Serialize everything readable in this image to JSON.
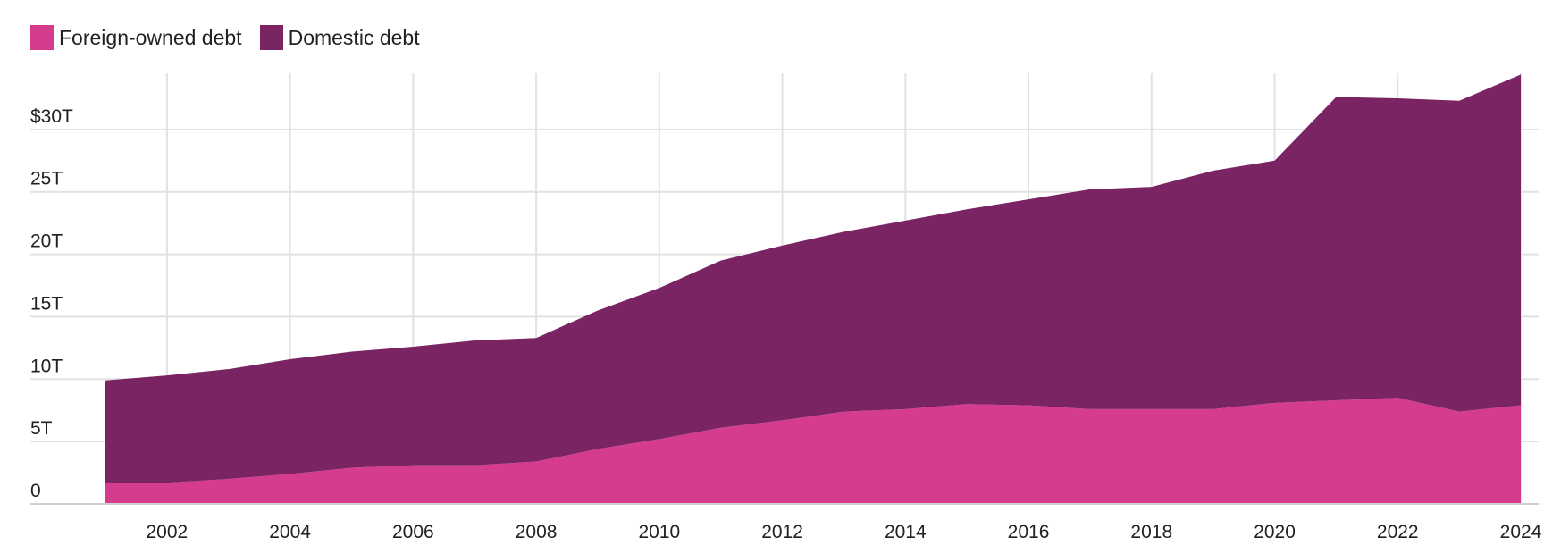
{
  "legend": {
    "foreign_label": "Foreign-owned debt",
    "domestic_label": "Domestic debt"
  },
  "colors": {
    "foreign": "#d53c8d",
    "domestic": "#7b2463",
    "grid": "#e2e2e2",
    "axis": "#cfcfcf"
  },
  "chart_data": {
    "type": "area",
    "stacked": true,
    "title": "",
    "xlabel": "",
    "ylabel": "",
    "x": [
      2001,
      2002,
      2003,
      2004,
      2005,
      2006,
      2007,
      2008,
      2009,
      2010,
      2011,
      2012,
      2013,
      2014,
      2015,
      2016,
      2017,
      2018,
      2019,
      2020,
      2021,
      2022,
      2023,
      2024
    ],
    "series": [
      {
        "name": "Foreign-owned debt",
        "values": [
          1.7,
          1.7,
          2.0,
          2.4,
          2.9,
          3.1,
          3.1,
          3.4,
          4.4,
          5.2,
          6.1,
          6.7,
          7.4,
          7.6,
          8.0,
          7.9,
          7.6,
          7.6,
          7.6,
          8.1,
          8.3,
          8.5,
          7.4,
          7.9
        ]
      },
      {
        "name": "Domestic debt",
        "values": [
          8.2,
          8.6,
          8.8,
          9.2,
          9.3,
          9.5,
          10.0,
          9.9,
          11.1,
          12.1,
          13.4,
          14.0,
          14.4,
          15.1,
          15.6,
          16.5,
          17.6,
          17.8,
          19.1,
          19.4,
          24.3,
          24.0,
          24.9,
          26.5
        ]
      }
    ],
    "ylim": [
      0,
      34.5
    ],
    "xlim": [
      2001,
      2024
    ],
    "y_ticks": [
      {
        "value": 0,
        "label": "0"
      },
      {
        "value": 5,
        "label": "5T"
      },
      {
        "value": 10,
        "label": "10T"
      },
      {
        "value": 15,
        "label": "15T"
      },
      {
        "value": 20,
        "label": "20T"
      },
      {
        "value": 25,
        "label": "25T"
      },
      {
        "value": 30,
        "label": "$30T"
      }
    ],
    "x_ticks": [
      {
        "value": 2002,
        "label": "2002"
      },
      {
        "value": 2004,
        "label": "2004"
      },
      {
        "value": 2006,
        "label": "2006"
      },
      {
        "value": 2008,
        "label": "2008"
      },
      {
        "value": 2010,
        "label": "2010"
      },
      {
        "value": 2012,
        "label": "2012"
      },
      {
        "value": 2014,
        "label": "2014"
      },
      {
        "value": 2016,
        "label": "2016"
      },
      {
        "value": 2018,
        "label": "2018"
      },
      {
        "value": 2020,
        "label": "2020"
      },
      {
        "value": 2022,
        "label": "2022"
      },
      {
        "value": 2024,
        "label": "2024"
      }
    ],
    "grid": true,
    "legend_position": "top-left"
  }
}
